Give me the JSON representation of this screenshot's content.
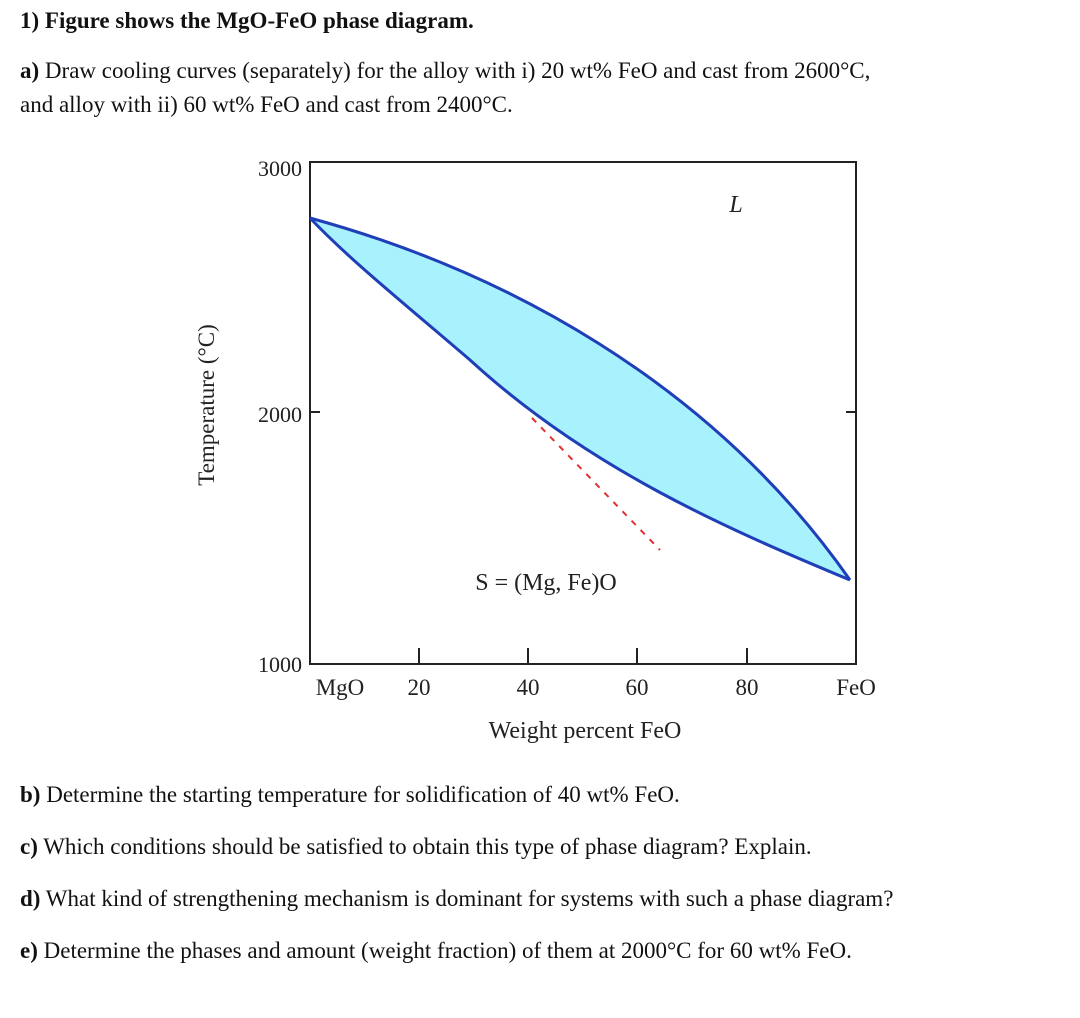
{
  "question": {
    "title": "1) Figure shows the MgO-FeO phase diagram.",
    "part_a": {
      "letter": "a)",
      "line1": " Draw cooling curves (separately) for the alloy with i) 20 wt% FeO and cast from 2600°C,",
      "line2": "and alloy with ii) 60 wt% FeO and cast from 2400°C."
    },
    "part_b": {
      "letter": "b)",
      "text": " Determine the starting temperature for solidification of 40 wt% FeO."
    },
    "part_c": {
      "letter": "c)",
      "text": " Which conditions should be satisfied to obtain this type of phase diagram? Explain."
    },
    "part_d": {
      "letter": "d)",
      "text": " What kind of strengthening mechanism is dominant for systems with such a phase diagram?"
    },
    "part_e": {
      "letter": "e)",
      "text": " Determine the phases and amount (weight fraction) of them at 2000°C for 60 wt% FeO."
    }
  },
  "diagram": {
    "xlabel": "Weight percent FeO",
    "ylabel": "Temperature (°C)",
    "liquid_label": "L",
    "solid_label": "S = (Mg, Fe)O",
    "y_ticks": [
      "3000",
      "2000",
      "1000"
    ],
    "x_ticks": [
      "MgO",
      "20",
      "40",
      "60",
      "80",
      "FeO"
    ],
    "fill_color": "#a8f2fd",
    "curve_color": "#1f3fb8",
    "dash_color": "#e03030"
  }
}
